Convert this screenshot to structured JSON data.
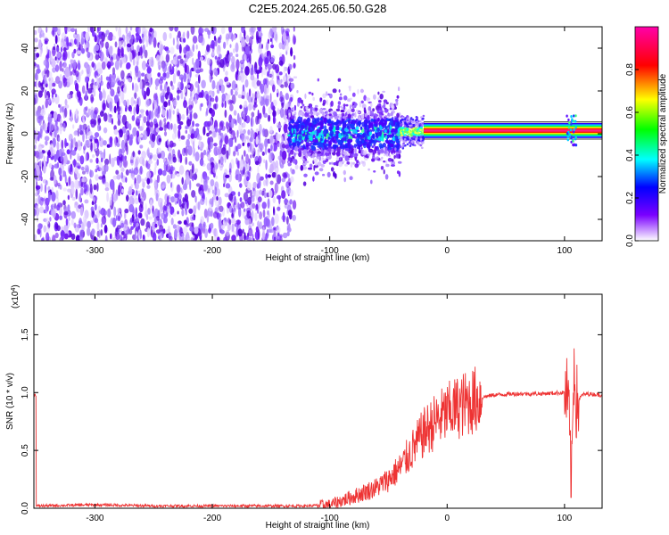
{
  "title": "C2E5.2024.265.06.50.G28",
  "chart_data": [
    {
      "type": "heatmap",
      "xlabel": "Height of straight line (km)",
      "ylabel": "Frequency (Hz)",
      "xlim": [
        -352,
        132
      ],
      "ylim": [
        -50,
        50
      ],
      "x_ticks": [
        -300,
        -200,
        -100,
        0,
        100
      ],
      "x_tick_labels": [
        "-300",
        "-200",
        "-100",
        "0",
        "100"
      ],
      "y_ticks": [
        -40,
        -20,
        0,
        20,
        40
      ],
      "y_tick_labels": [
        "-40",
        "-20",
        "0",
        "20",
        "40"
      ],
      "colorbar": {
        "label": "Normalized spectral amplitude",
        "range": [
          0,
          1
        ],
        "ticks": [
          0.0,
          0.2,
          0.4,
          0.6,
          0.8
        ],
        "tick_labels": [
          "0.0",
          "0.2",
          "0.4",
          "0.6",
          "0.8"
        ],
        "colormap": [
          "#ffffff",
          "#6600ff",
          "#0000ff",
          "#00ffff",
          "#00ff00",
          "#ffff00",
          "#ff0000",
          "#ff00ff"
        ]
      },
      "regions": [
        {
          "x_range": [
            -352,
            -130
          ],
          "freq_spread": 50,
          "amplitude": 0.05
        },
        {
          "x_range": [
            -135,
            -40
          ],
          "freq_spread": 12,
          "amplitude": 0.3
        },
        {
          "x_range": [
            -40,
            -20
          ],
          "freq_spread": 8,
          "amplitude": 0.45
        },
        {
          "x_range": [
            -20,
            132
          ],
          "freq_center": 1.5,
          "freq_spread": 2,
          "amplitude": 1.0
        }
      ]
    },
    {
      "type": "line",
      "xlabel": "Height of straight line (km)",
      "ylabel": "SNR (10 * v/v)",
      "y_multiplier": "(x10",
      "y_multiplier_exp": "4",
      "xlim": [
        -352,
        132
      ],
      "ylim": [
        0,
        1.85
      ],
      "x_ticks": [
        -300,
        -200,
        -100,
        0,
        100
      ],
      "x_tick_labels": [
        "-300",
        "-200",
        "-100",
        "0",
        "100"
      ],
      "y_ticks": [
        0.0,
        0.5,
        1.0,
        1.5
      ],
      "y_tick_labels": [
        "0.0",
        "0.5",
        "1.0",
        "1.5"
      ],
      "color": "#ee3333",
      "series": [
        {
          "x": [
            -350,
            -300,
            -250,
            -200,
            -150,
            -120,
            -100,
            -80,
            -60,
            -50,
            -40,
            -30,
            -20,
            -10,
            0,
            10,
            20,
            30,
            40,
            60,
            80,
            100,
            103,
            106,
            108,
            110,
            115,
            120,
            130
          ],
          "y": [
            0.02,
            0.03,
            0.02,
            0.02,
            0.02,
            0.02,
            0.03,
            0.1,
            0.18,
            0.25,
            0.35,
            0.5,
            0.65,
            0.75,
            0.82,
            0.88,
            0.92,
            0.96,
            0.98,
            0.99,
            0.99,
            1.0,
            0.95,
            0.2,
            1.3,
            0.9,
            0.98,
            0.99,
            0.98
          ]
        }
      ]
    }
  ]
}
